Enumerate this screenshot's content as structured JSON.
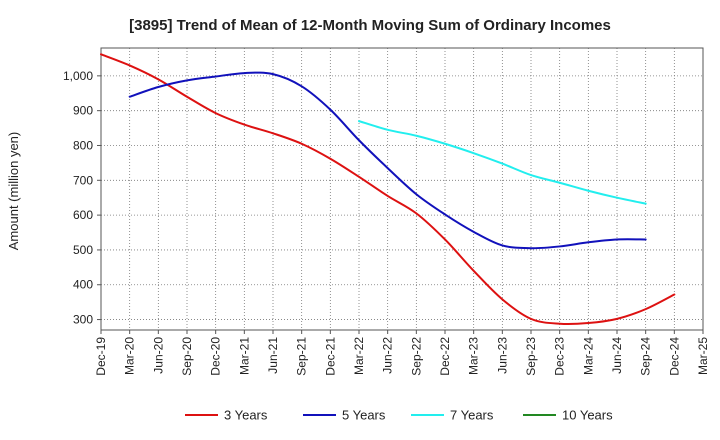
{
  "chart_data": {
    "type": "line",
    "title": "[3895]  Trend of Mean of 12-Month Moving Sum of Ordinary Incomes",
    "xlabel": "",
    "ylabel": "Amount (million yen)",
    "ylim": [
      270,
      1080
    ],
    "yticks": [
      300,
      400,
      500,
      600,
      700,
      800,
      900,
      1000
    ],
    "ytick_labels": [
      "300",
      "400",
      "500",
      "600",
      "700",
      "800",
      "900",
      "1,000"
    ],
    "categories": [
      "Dec-19",
      "Mar-20",
      "Jun-20",
      "Sep-20",
      "Dec-20",
      "Mar-21",
      "Jun-21",
      "Sep-21",
      "Dec-21",
      "Mar-22",
      "Jun-22",
      "Sep-22",
      "Dec-22",
      "Mar-23",
      "Jun-23",
      "Sep-23",
      "Dec-23",
      "Mar-24",
      "Jun-24",
      "Sep-24",
      "Dec-24",
      "Mar-25"
    ],
    "grid": true,
    "legend_position": "bottom",
    "series": [
      {
        "name": "3 Years",
        "color": "#dd1111",
        "values": [
          1062,
          1030,
          990,
          940,
          893,
          860,
          835,
          805,
          762,
          710,
          655,
          605,
          530,
          440,
          358,
          302,
          288,
          290,
          302,
          330,
          372,
          null
        ]
      },
      {
        "name": "5 Years",
        "color": "#1111bb",
        "values": [
          null,
          940,
          968,
          987,
          998,
          1008,
          1005,
          970,
          903,
          815,
          735,
          660,
          602,
          552,
          513,
          505,
          510,
          522,
          530,
          530,
          null,
          null
        ]
      },
      {
        "name": "7 Years",
        "color": "#22eeee",
        "values": [
          null,
          null,
          null,
          null,
          null,
          null,
          null,
          null,
          null,
          870,
          845,
          828,
          805,
          778,
          748,
          715,
          693,
          670,
          650,
          633,
          null,
          null
        ]
      },
      {
        "name": "10 Years",
        "color": "#228822",
        "values": [
          null,
          null,
          null,
          null,
          null,
          null,
          null,
          null,
          null,
          null,
          null,
          null,
          null,
          null,
          null,
          null,
          null,
          null,
          null,
          null,
          null,
          null
        ]
      }
    ]
  }
}
